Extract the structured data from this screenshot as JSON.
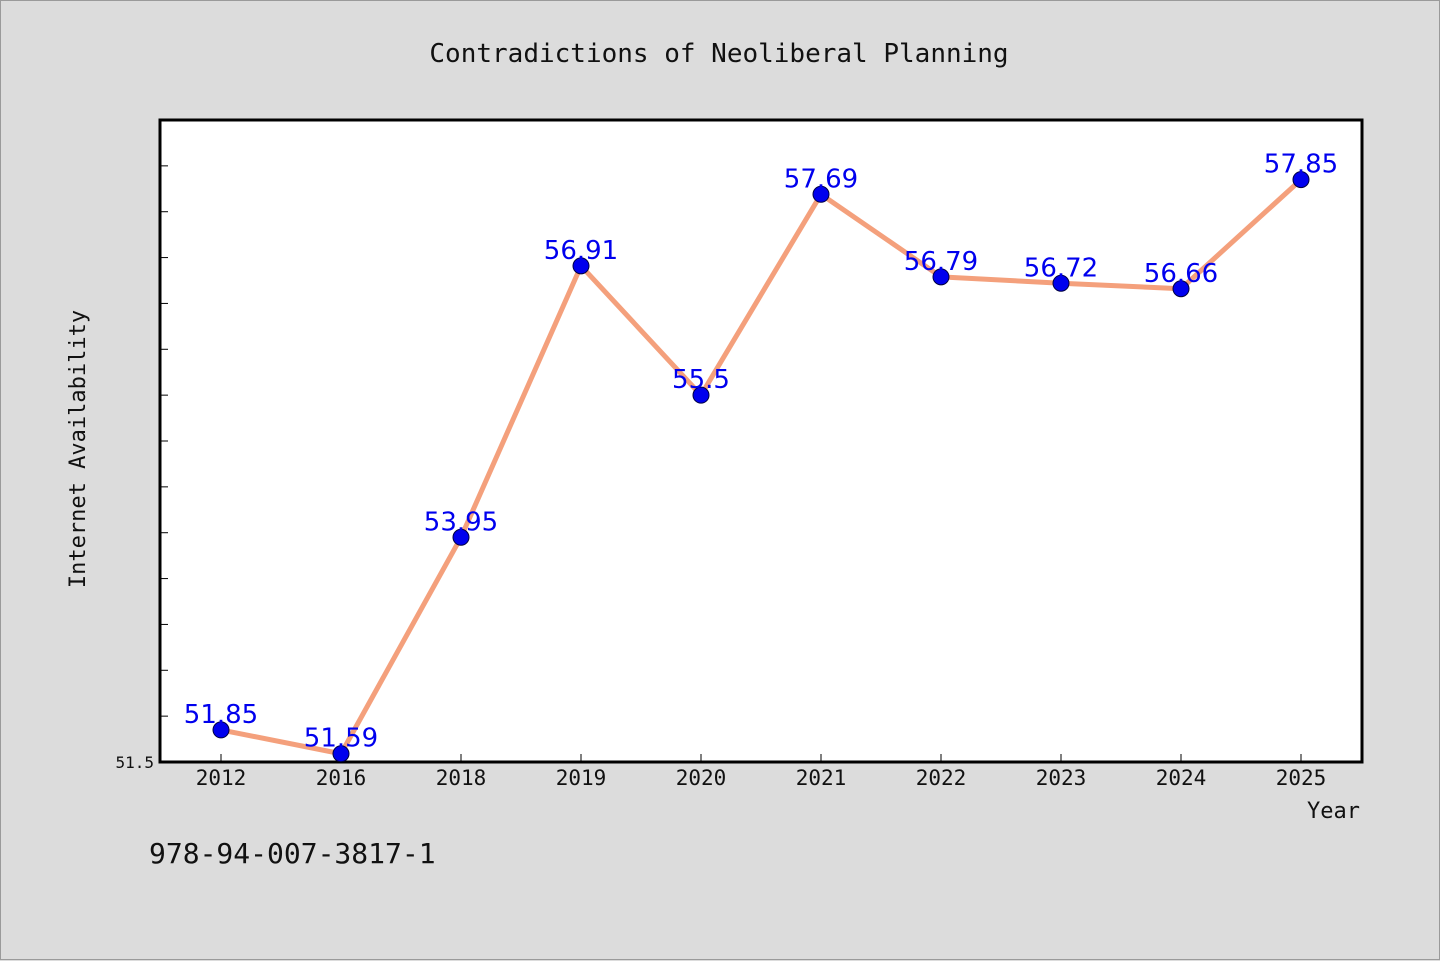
{
  "chart_data": {
    "type": "line",
    "title": "Contradictions of Neoliberal Planning",
    "xlabel": "Year",
    "ylabel": "Internet Availability",
    "categories": [
      "2012",
      "2016",
      "2018",
      "2019",
      "2020",
      "2021",
      "2022",
      "2023",
      "2024",
      "2025"
    ],
    "series": [
      {
        "values": [
          51.85,
          51.59,
          53.95,
          56.91,
          55.5,
          57.69,
          56.79,
          56.72,
          56.66,
          57.85
        ],
        "labels": [
          "51.85",
          "51.59",
          "53.95",
          "56.91",
          "55.5",
          "57.69",
          "56.79",
          "56.72",
          "56.66",
          "57.85"
        ]
      }
    ],
    "yticks": [
      "51.5"
    ],
    "ylim": [
      51.5,
      58.5
    ],
    "grid": false,
    "legend": "none"
  },
  "footer_text": "978-94-007-3817-1",
  "colors": {
    "background": "#dcdcdc",
    "plot_background": "#ffffff",
    "line": "#f4a07c",
    "marker": "#0000ee",
    "data_label": "#0000ee"
  }
}
